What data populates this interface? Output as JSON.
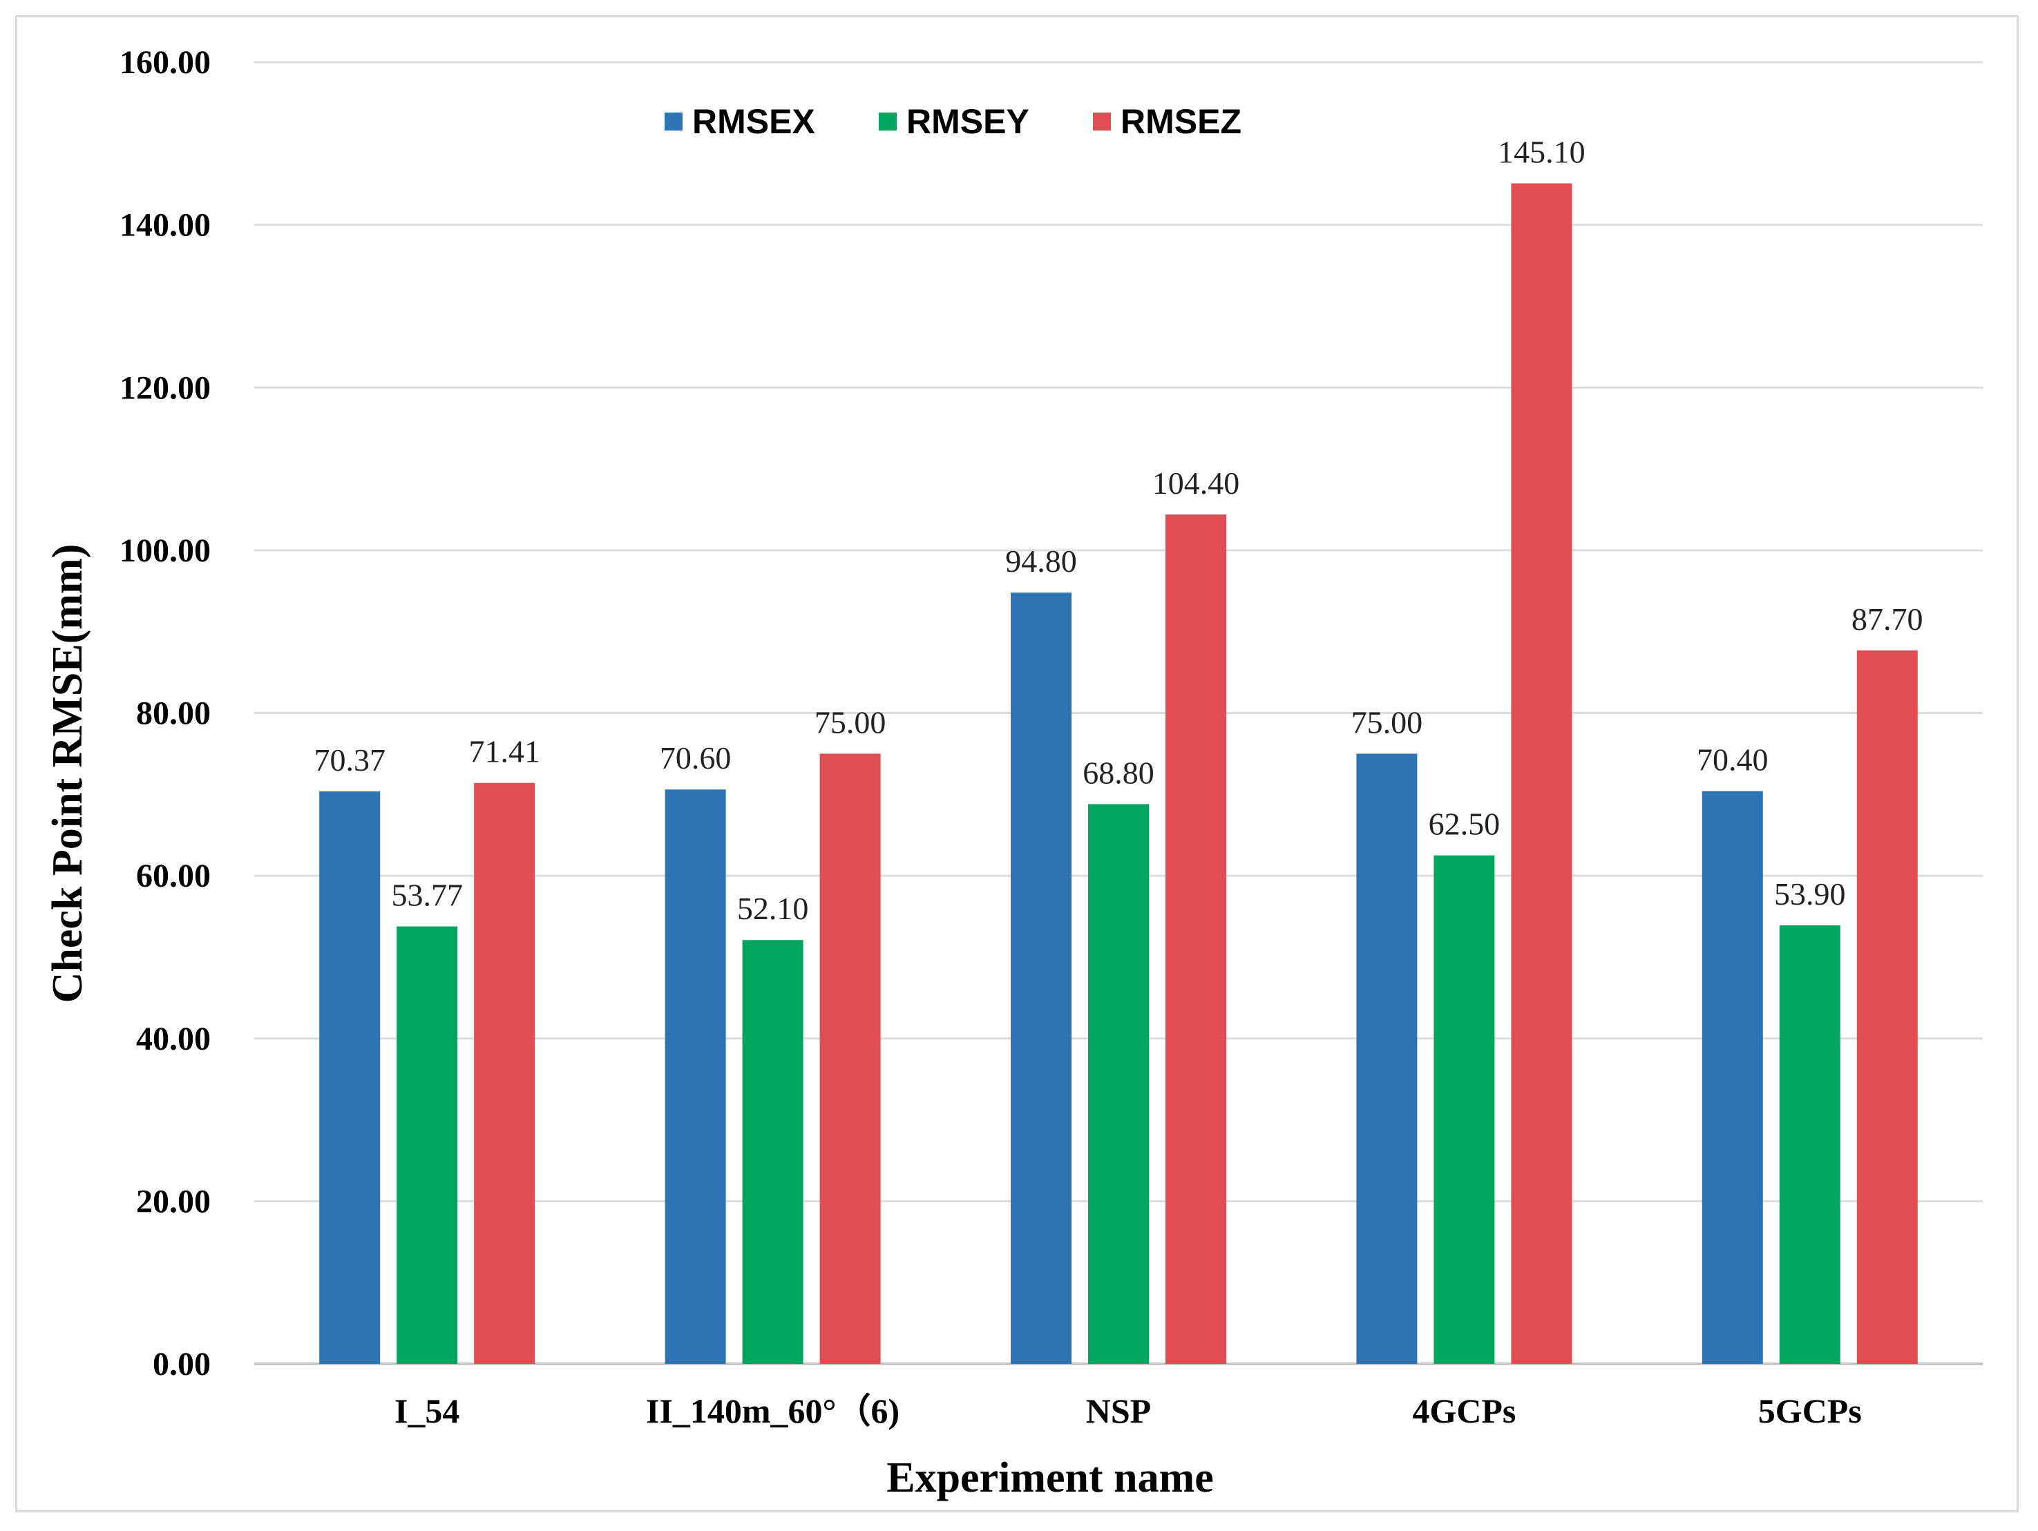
{
  "chart_data": {
    "type": "bar",
    "title": "",
    "xlabel": "Experiment name",
    "ylabel": "Check Point RMSE(mm)",
    "ylim": [
      0,
      160
    ],
    "yticks": [
      "0.00",
      "20.00",
      "40.00",
      "60.00",
      "80.00",
      "100.00",
      "120.00",
      "140.00",
      "160.00"
    ],
    "grid": true,
    "legend_position": "top-center",
    "categories": [
      "I_54",
      "II_140m_60°（6)",
      "NSP",
      "4GCPs",
      "5GCPs"
    ],
    "series": [
      {
        "name": "RMSEX",
        "color": "#2E74B5",
        "values": [
          70.37,
          70.6,
          94.8,
          75.0,
          70.4
        ],
        "labels": [
          "70.37",
          "70.60",
          "94.80",
          "75.00",
          "70.40"
        ]
      },
      {
        "name": "RMSEY",
        "color": "#00A65E",
        "values": [
          53.77,
          52.1,
          68.8,
          62.5,
          53.9
        ],
        "labels": [
          "53.77",
          "52.10",
          "68.80",
          "62.50",
          "53.90"
        ]
      },
      {
        "name": "RMSEZ",
        "color": "#E04D52",
        "values": [
          71.41,
          75.0,
          104.4,
          145.1,
          87.7
        ],
        "labels": [
          "71.41",
          "75.00",
          "104.40",
          "145.10",
          "87.70"
        ]
      }
    ]
  }
}
